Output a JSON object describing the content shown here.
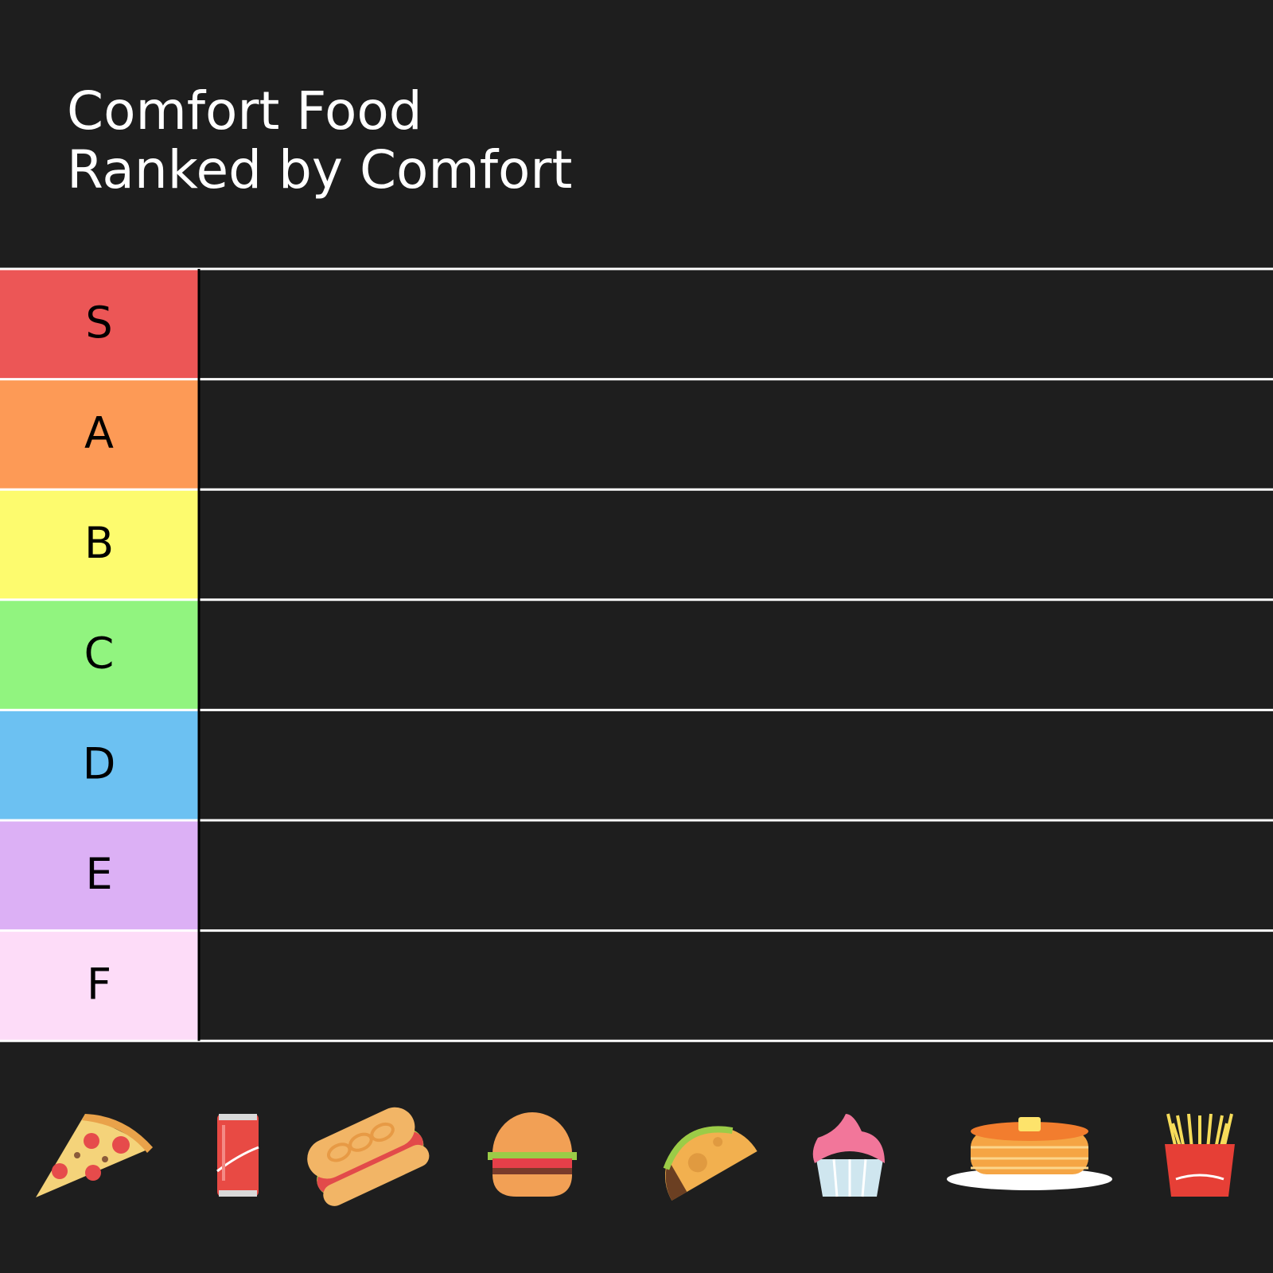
{
  "header": {
    "title_lines": [
      "Comfort Food",
      "Ranked by Comfort"
    ]
  },
  "tiers": [
    {
      "label": "S",
      "color": "#ec5656"
    },
    {
      "label": "A",
      "color": "#fd9a56"
    },
    {
      "label": "B",
      "color": "#fdfb6e"
    },
    {
      "label": "C",
      "color": "#91f47f"
    },
    {
      "label": "D",
      "color": "#6cc1f2"
    },
    {
      "label": "E",
      "color": "#dcb0f5"
    },
    {
      "label": "F",
      "color": "#fddcf8"
    }
  ]
}
